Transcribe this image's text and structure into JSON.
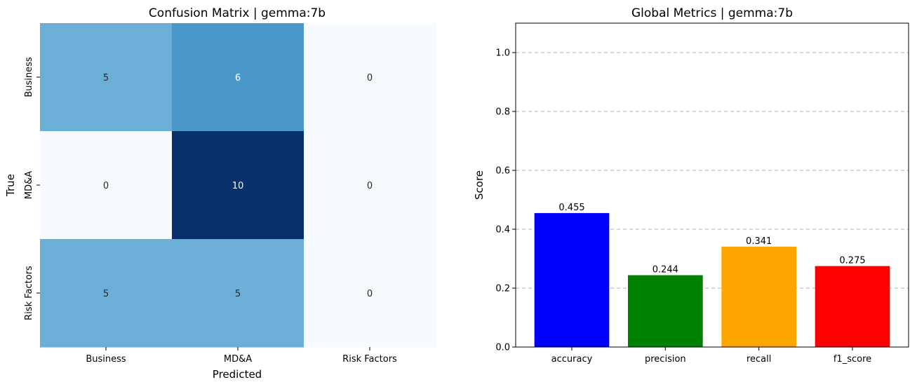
{
  "chart_data": [
    {
      "type": "heatmap",
      "title": "Confusion Matrix | gemma:7b",
      "xlabel": "Predicted",
      "ylabel": "True",
      "x_categories": [
        "Business",
        "MD&A",
        "Risk Factors"
      ],
      "y_categories": [
        "Business",
        "MD&A",
        "Risk Factors"
      ],
      "values": [
        [
          5,
          6,
          0
        ],
        [
          0,
          10,
          0
        ],
        [
          5,
          5,
          0
        ]
      ],
      "colormap": "Blues",
      "value_range": [
        0,
        10
      ],
      "colorbar": false
    },
    {
      "type": "bar",
      "title": "Global Metrics | gemma:7b",
      "xlabel": "",
      "ylabel": "Score",
      "categories": [
        "accuracy",
        "precision",
        "recall",
        "f1_score"
      ],
      "values": [
        0.455,
        0.244,
        0.341,
        0.275
      ],
      "value_labels": [
        "0.455",
        "0.244",
        "0.341",
        "0.275"
      ],
      "colors": [
        "#0000ff",
        "#008000",
        "#ffa500",
        "#ff0000"
      ],
      "ylim": [
        0,
        1.1
      ],
      "yticks": [
        "0.0",
        "0.2",
        "0.4",
        "0.6",
        "0.8",
        "1.0"
      ],
      "grid": "y-dashed"
    }
  ]
}
